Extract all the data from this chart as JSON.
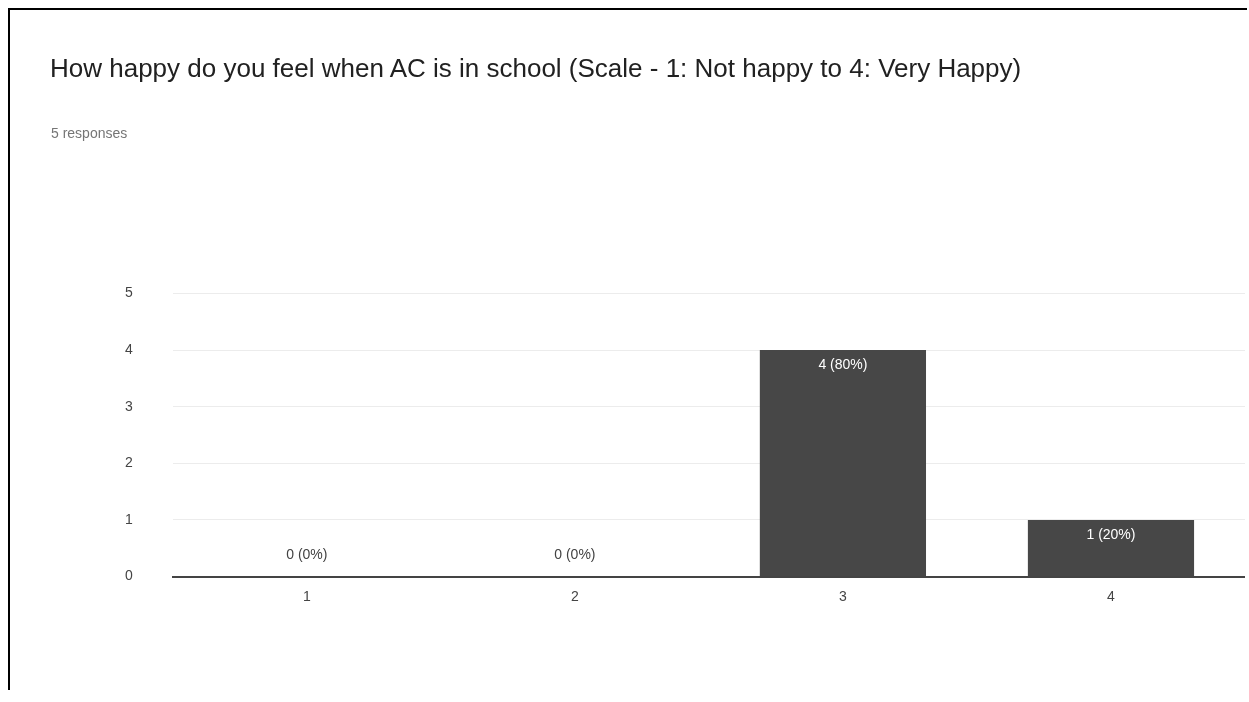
{
  "chart_data": {
    "type": "bar",
    "title": "How happy do you feel when AC is in school   (Scale - 1: Not happy to 4: Very Happy)",
    "subtitle": "5 responses",
    "categories": [
      "1",
      "2",
      "3",
      "4"
    ],
    "values": [
      0,
      0,
      4,
      1
    ],
    "value_labels": [
      "0 (0%)",
      "0 (0%)",
      "4 (80%)",
      "1 (20%)"
    ],
    "color": "#474747",
    "ylim": [
      0,
      5
    ],
    "yticks": [
      0,
      1,
      2,
      3,
      4,
      5
    ],
    "grid": "y"
  }
}
